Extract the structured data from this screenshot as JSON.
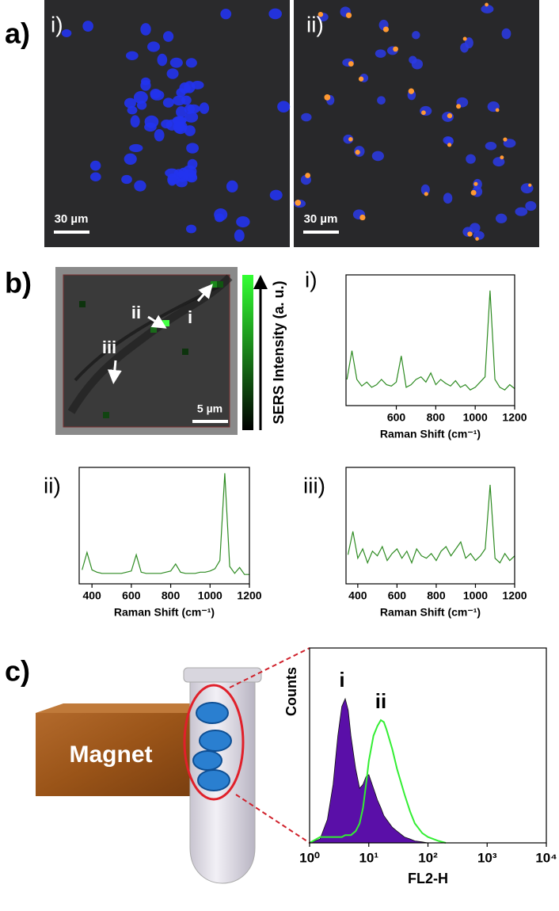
{
  "panels": {
    "a": {
      "label": "a)",
      "images": [
        {
          "label": "i)",
          "scale_bar": "30 µm"
        },
        {
          "label": "ii)",
          "scale_bar": "30 µm"
        }
      ]
    },
    "b": {
      "label": "b)",
      "map": {
        "points": [
          "ii",
          "i",
          "iii"
        ],
        "scale_bar": "5 µm",
        "colorbar_label": "SERS Intensity (a. u.)"
      }
    },
    "c": {
      "label": "c)",
      "magnet": "Magnet"
    }
  },
  "chart_data": [
    {
      "type": "line",
      "panel_label": "i)",
      "x": [
        350,
        375,
        400,
        425,
        450,
        475,
        500,
        525,
        550,
        575,
        600,
        625,
        650,
        675,
        700,
        725,
        750,
        775,
        800,
        825,
        850,
        875,
        900,
        925,
        950,
        975,
        1000,
        1025,
        1050,
        1075,
        1100,
        1125,
        1150,
        1175,
        1200
      ],
      "series": [
        {
          "color": "#2e8b22",
          "values": [
            20,
            42,
            20,
            15,
            18,
            14,
            16,
            20,
            16,
            15,
            18,
            38,
            14,
            16,
            20,
            22,
            18,
            25,
            16,
            20,
            17,
            15,
            19,
            14,
            16,
            12,
            14,
            18,
            22,
            88,
            20,
            14,
            12,
            16,
            13
          ]
        }
      ],
      "xlim": [
        345,
        1200
      ],
      "xticks": [
        600,
        800,
        1000,
        1200
      ],
      "ylim": [
        0,
        100
      ],
      "x_label": "Raman Shift (cm⁻¹)"
    },
    {
      "type": "line",
      "panel_label": "ii)",
      "x": [
        350,
        375,
        400,
        425,
        450,
        475,
        500,
        525,
        550,
        575,
        600,
        625,
        650,
        675,
        700,
        725,
        750,
        775,
        800,
        825,
        850,
        875,
        900,
        925,
        950,
        975,
        1000,
        1025,
        1050,
        1075,
        1100,
        1125,
        1150,
        1175,
        1200
      ],
      "series": [
        {
          "color": "#2e8b22",
          "values": [
            12,
            27,
            12,
            10,
            9,
            9,
            9,
            9,
            9,
            10,
            11,
            25,
            10,
            9,
            9,
            9,
            9,
            10,
            11,
            17,
            10,
            9,
            9,
            9,
            10,
            10,
            11,
            13,
            20,
            95,
            15,
            9,
            14,
            8,
            8
          ]
        }
      ],
      "xlim": [
        335,
        1200
      ],
      "xticks": [
        400,
        600,
        800,
        1000,
        1200
      ],
      "ylim": [
        0,
        100
      ],
      "x_label": "Raman Shift (cm⁻¹)"
    },
    {
      "type": "line",
      "panel_label": "iii)",
      "x": [
        350,
        375,
        400,
        425,
        450,
        475,
        500,
        525,
        550,
        575,
        600,
        625,
        650,
        675,
        700,
        725,
        750,
        775,
        800,
        825,
        850,
        875,
        900,
        925,
        950,
        975,
        1000,
        1025,
        1050,
        1075,
        1100,
        1125,
        1150,
        1175,
        1200
      ],
      "series": [
        {
          "color": "#2e8b22",
          "values": [
            25,
            45,
            22,
            30,
            18,
            28,
            24,
            32,
            20,
            26,
            30,
            22,
            28,
            18,
            30,
            24,
            22,
            26,
            20,
            28,
            32,
            24,
            30,
            36,
            22,
            26,
            20,
            24,
            30,
            85,
            22,
            18,
            26,
            20,
            24
          ]
        }
      ],
      "xlim": [
        340,
        1200
      ],
      "xticks": [
        400,
        600,
        800,
        1000,
        1200
      ],
      "ylim": [
        0,
        100
      ],
      "x_label": "Raman Shift (cm⁻¹)"
    },
    {
      "type": "area",
      "log_x": true,
      "x": [
        1,
        1.5,
        2,
        2.5,
        3,
        3.5,
        4,
        4.5,
        5,
        6,
        7,
        8,
        9,
        10,
        12,
        14,
        16,
        18,
        20,
        25,
        30,
        40,
        50,
        60,
        80,
        100,
        150,
        200
      ],
      "series": [
        {
          "name": "i",
          "color": "#5a0fa8",
          "fill": true,
          "values": [
            0,
            2,
            12,
            30,
            55,
            70,
            74,
            68,
            55,
            38,
            28,
            30,
            34,
            35,
            28,
            22,
            18,
            14,
            12,
            8,
            6,
            3,
            2,
            1,
            0.5,
            0,
            0,
            0
          ]
        },
        {
          "name": "ii",
          "color": "#33ee33",
          "fill": false,
          "values": [
            0,
            3,
            3,
            3,
            3,
            3,
            4,
            4,
            4,
            6,
            10,
            18,
            30,
            42,
            55,
            60,
            63,
            62,
            58,
            48,
            38,
            25,
            16,
            10,
            5,
            3,
            1,
            0
          ]
        }
      ],
      "xlim": [
        1,
        10000
      ],
      "xticks": [
        {
          "value": 1,
          "label": "10⁰"
        },
        {
          "value": 10,
          "label": "10¹"
        },
        {
          "value": 100,
          "label": "10²"
        },
        {
          "value": 1000,
          "label": "10³"
        },
        {
          "value": 10000,
          "label": "10⁴"
        }
      ],
      "ylim": [
        0,
        100
      ],
      "x_label": "FL2-H",
      "y_label": "Counts"
    }
  ]
}
